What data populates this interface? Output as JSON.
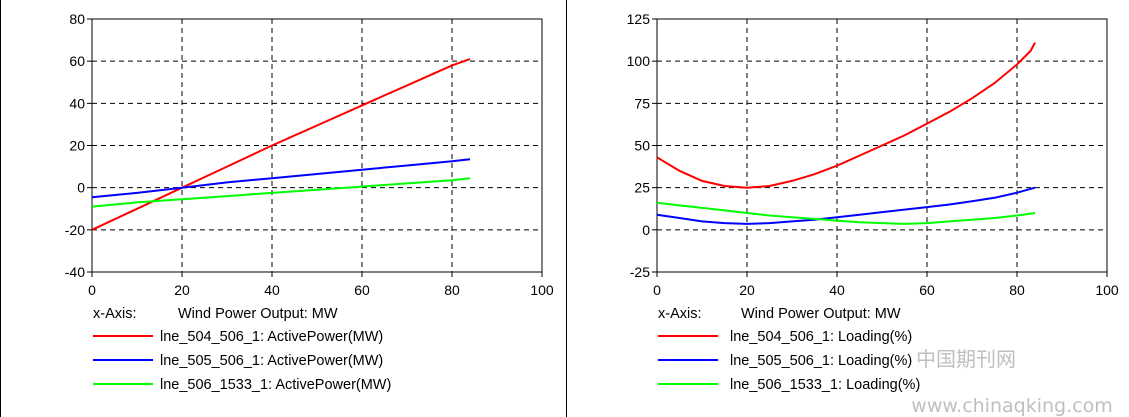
{
  "chart_data": [
    {
      "type": "line",
      "xlabel_prefix": "x-Axis:",
      "xlabel": "Wind Power Output: MW",
      "xlim": [
        0,
        100
      ],
      "ylim": [
        -40,
        80
      ],
      "xticks": [
        0,
        20,
        40,
        60,
        80,
        100
      ],
      "yticks": [
        -40,
        -20,
        0,
        20,
        40,
        60,
        80
      ],
      "grid": true,
      "legend_placement": "bottom",
      "series": [
        {
          "name": "lne_504_506_1: ActivePower(MW)",
          "color": "#ff0000",
          "x": [
            0,
            10,
            20,
            30,
            40,
            50,
            60,
            70,
            80,
            84
          ],
          "y": [
            -20,
            -10,
            0,
            10,
            20,
            29.5,
            39,
            48.5,
            58,
            61
          ]
        },
        {
          "name": "lne_505_506_1: ActivePower(MW)",
          "color": "#0000ff",
          "x": [
            0,
            10,
            20,
            30,
            40,
            50,
            60,
            70,
            80,
            84
          ],
          "y": [
            -4.5,
            -2.5,
            0,
            2.5,
            4.5,
            6.5,
            8.5,
            10.5,
            12.5,
            13.5
          ]
        },
        {
          "name": "lne_506_1533_1: ActivePower(MW)",
          "color": "#00ff00",
          "x": [
            0,
            10,
            20,
            30,
            40,
            50,
            60,
            70,
            80,
            84
          ],
          "y": [
            -9,
            -7,
            -5.5,
            -4,
            -2.5,
            -1,
            0.5,
            2,
            3.5,
            4.5
          ]
        }
      ]
    },
    {
      "type": "line",
      "xlabel_prefix": "x-Axis:",
      "xlabel": "Wind Power Output: MW",
      "xlim": [
        0,
        100
      ],
      "ylim": [
        -25,
        125
      ],
      "xticks": [
        0,
        20,
        40,
        60,
        80,
        100
      ],
      "yticks": [
        -25,
        0,
        25,
        50,
        75,
        100,
        125
      ],
      "grid": true,
      "legend_placement": "bottom",
      "series": [
        {
          "name": "lne_504_506_1: Loading(%)",
          "color": "#ff0000",
          "x": [
            0,
            5,
            10,
            15,
            20,
            25,
            30,
            35,
            40,
            45,
            50,
            55,
            60,
            65,
            70,
            75,
            80,
            83,
            84
          ],
          "y": [
            43,
            35,
            29,
            26,
            25,
            26,
            29,
            33,
            38,
            44,
            50,
            56,
            63,
            70,
            78,
            87,
            98,
            106,
            111
          ]
        },
        {
          "name": "lne_505_506_1: Loading(%)",
          "color": "#0000ff",
          "x": [
            0,
            5,
            10,
            15,
            20,
            25,
            30,
            35,
            40,
            45,
            50,
            55,
            60,
            65,
            70,
            75,
            80,
            84
          ],
          "y": [
            9,
            7,
            5,
            4,
            3.5,
            4,
            5,
            6,
            7.5,
            9,
            10.5,
            12,
            13.5,
            15,
            17,
            19,
            22,
            25
          ]
        },
        {
          "name": "lne_506_1533_1: Loading(%)",
          "color": "#00ff00",
          "x": [
            0,
            5,
            10,
            15,
            20,
            25,
            30,
            35,
            40,
            45,
            50,
            55,
            60,
            65,
            70,
            75,
            80,
            84
          ],
          "y": [
            16,
            14.5,
            13,
            11.5,
            10,
            8.5,
            7.5,
            6.5,
            5.5,
            4.5,
            4,
            3.5,
            4,
            5,
            6,
            7,
            8.5,
            10
          ]
        }
      ]
    }
  ],
  "watermark": {
    "line1": "中国期刊网",
    "line2": "www.chinaqking.com"
  }
}
